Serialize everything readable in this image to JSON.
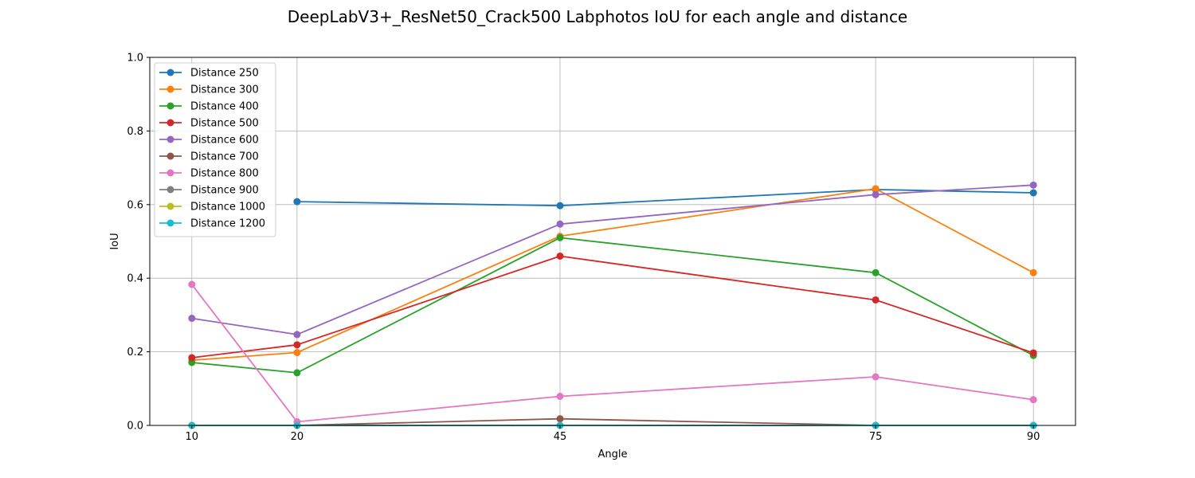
{
  "chart_data": {
    "type": "line",
    "title": "DeepLabV3+_ResNet50_Crack500 Labphotos IoU for each angle and distance",
    "xlabel": "Angle",
    "ylabel": "IoU",
    "x": [
      10,
      20,
      45,
      75,
      90
    ],
    "xticks": [
      "10",
      "20",
      "45",
      "75",
      "90"
    ],
    "xlim": [
      6,
      94
    ],
    "ylim": [
      0.0,
      1.0
    ],
    "yticks": [
      "0.0",
      "0.2",
      "0.4",
      "0.6",
      "0.8",
      "1.0"
    ],
    "grid": true,
    "legend_position": "top-left",
    "series": [
      {
        "name": "Distance 250",
        "color": "#1f77b4",
        "values": [
          null,
          0.608,
          0.597,
          0.641,
          0.632
        ]
      },
      {
        "name": "Distance 300",
        "color": "#ff7f0e",
        "values": [
          0.177,
          0.198,
          0.514,
          0.643,
          0.415
        ]
      },
      {
        "name": "Distance 400",
        "color": "#2ca02c",
        "values": [
          0.171,
          0.143,
          0.51,
          0.415,
          0.19
        ]
      },
      {
        "name": "Distance 500",
        "color": "#d62728",
        "values": [
          0.184,
          0.219,
          0.46,
          0.341,
          0.197
        ]
      },
      {
        "name": "Distance 600",
        "color": "#9467bd",
        "values": [
          0.291,
          0.247,
          0.547,
          0.627,
          0.653
        ]
      },
      {
        "name": "Distance 700",
        "color": "#8c564b",
        "values": [
          0.0,
          0.0,
          0.018,
          0.0,
          0.0
        ]
      },
      {
        "name": "Distance 800",
        "color": "#e377c2",
        "values": [
          0.383,
          0.01,
          0.079,
          0.132,
          0.07
        ]
      },
      {
        "name": "Distance 900",
        "color": "#7f7f7f",
        "values": [
          0.0,
          0.0,
          0.0,
          0.0,
          0.0
        ]
      },
      {
        "name": "Distance 1000",
        "color": "#bcbd22",
        "values": [
          0.0,
          0.0,
          0.0,
          0.0,
          0.0
        ]
      },
      {
        "name": "Distance 1200",
        "color": "#17becf",
        "values": [
          0.0,
          0.0,
          0.0,
          0.0,
          0.0
        ]
      }
    ]
  }
}
